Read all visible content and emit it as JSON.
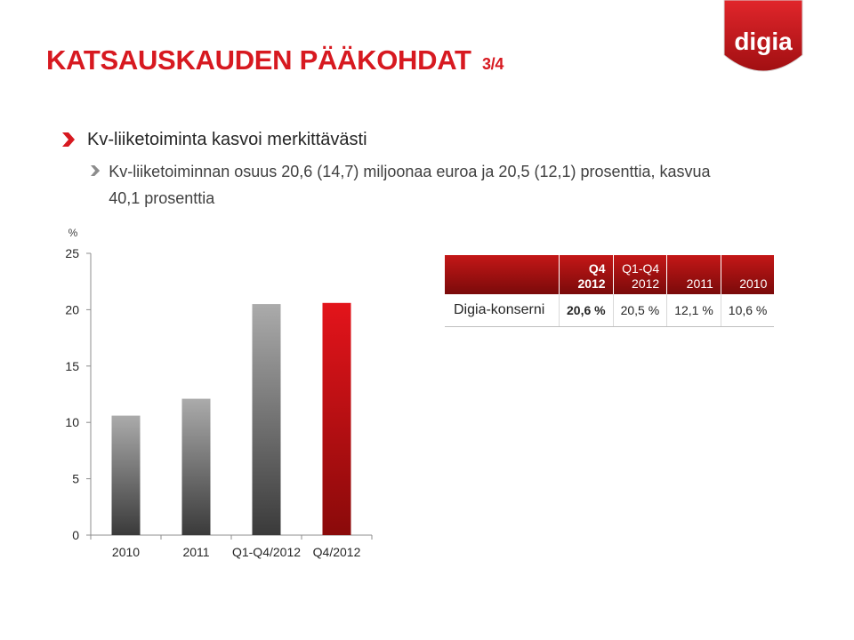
{
  "header": {
    "title": "KATSAUSKAUDEN PÄÄKOHDAT",
    "page_indicator": "3/4",
    "logo_text": "digia"
  },
  "bullets": {
    "level1": "Kv-liiketoiminta kasvoi merkittävästi",
    "level2": "Kv-liiketoiminnan osuus 20,6 (14,7) miljoonaa euroa ja 20,5 (12,1) prosenttia, kasvua 40,1 prosenttia"
  },
  "table": {
    "header_empty": "",
    "col1_line1": "Q4",
    "col1_line2": "2012",
    "col2_line1": "Q1-Q4",
    "col2_line2": "2012",
    "col3": "2011",
    "col4": "2010",
    "row_label": "Digia-konserni",
    "row_values": [
      "20,6 %",
      "20,5 %",
      "12,1 %",
      "10,6 %"
    ]
  },
  "colors": {
    "brand_red": "#d71920",
    "bar_gray_top": "#ababab",
    "bar_gray_bottom": "#3a3a3a",
    "bar_red_top": "#e3141b",
    "bar_red_bottom": "#8a0a0a"
  },
  "chart_data": {
    "type": "bar",
    "ylabel": "%",
    "xlabel": "",
    "title": "",
    "categories": [
      "2010",
      "2011",
      "Q1-Q4/2012",
      "Q4/2012"
    ],
    "values": [
      10.6,
      12.1,
      20.5,
      20.6
    ],
    "highlight_index": 3,
    "ylim": [
      0,
      25
    ],
    "yticks": [
      0,
      5,
      10,
      15,
      20,
      25
    ],
    "grid": false,
    "legend": "none"
  }
}
